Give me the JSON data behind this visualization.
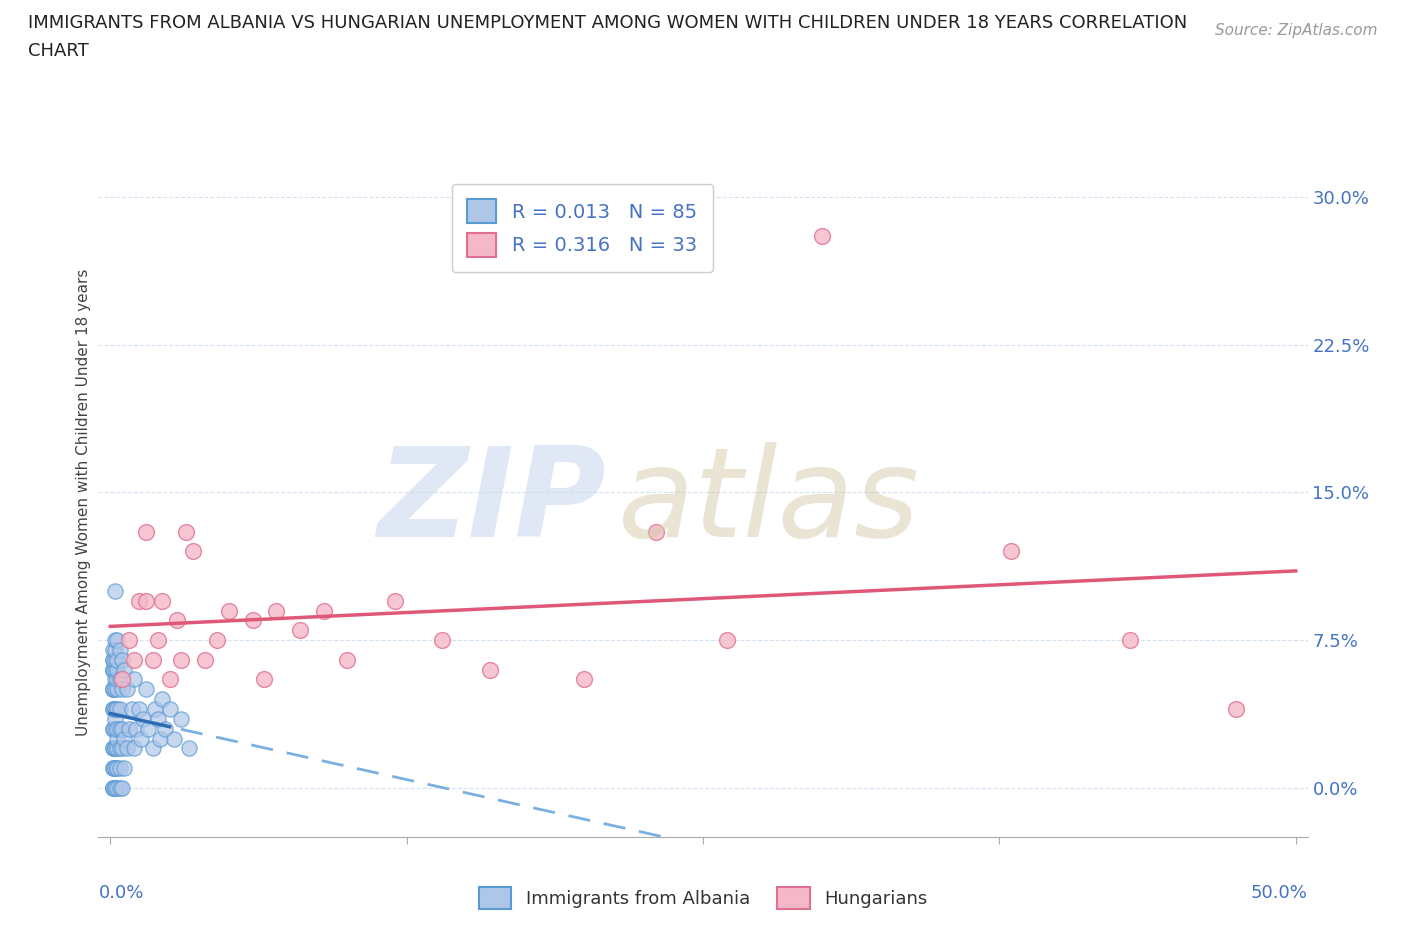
{
  "title_line1": "IMMIGRANTS FROM ALBANIA VS HUNGARIAN UNEMPLOYMENT AMONG WOMEN WITH CHILDREN UNDER 18 YEARS CORRELATION",
  "title_line2": "CHART",
  "source": "Source: ZipAtlas.com",
  "ylabel": "Unemployment Among Women with Children Under 18 years",
  "ytick_labels": [
    "0.0%",
    "7.5%",
    "15.0%",
    "22.5%",
    "30.0%"
  ],
  "ytick_values": [
    0.0,
    0.075,
    0.15,
    0.225,
    0.3
  ],
  "xlim": [
    -0.005,
    0.505
  ],
  "ylim": [
    -0.025,
    0.315
  ],
  "legend_albania": "R = 0.013   N = 85",
  "legend_hungarians": "R = 0.316   N = 33",
  "color_albania_fill": "#aec6e8",
  "color_albania_edge": "#5b9bd5",
  "color_albania_line_solid": "#2d6bb5",
  "color_albania_line_dash": "#7bb0e0",
  "color_hungarians_fill": "#f4b8c8",
  "color_hungarians_edge": "#e07090",
  "color_hungarians_line": "#e05878",
  "color_axis_text": "#4472c4",
  "color_grid": "#d0dff0",
  "watermark_zip_color": "#ccd9f0",
  "watermark_atlas_color": "#d4cba8",
  "albania_x": [
    0.001,
    0.001,
    0.001,
    0.001,
    0.001,
    0.001,
    0.001,
    0.001,
    0.001,
    0.001,
    0.001,
    0.001,
    0.001,
    0.001,
    0.001,
    0.001,
    0.001,
    0.001,
    0.001,
    0.001,
    0.002,
    0.002,
    0.002,
    0.002,
    0.002,
    0.002,
    0.002,
    0.002,
    0.002,
    0.002,
    0.002,
    0.002,
    0.002,
    0.002,
    0.002,
    0.002,
    0.002,
    0.003,
    0.003,
    0.003,
    0.003,
    0.003,
    0.003,
    0.003,
    0.003,
    0.003,
    0.003,
    0.003,
    0.004,
    0.004,
    0.004,
    0.004,
    0.004,
    0.004,
    0.004,
    0.005,
    0.005,
    0.005,
    0.005,
    0.005,
    0.006,
    0.006,
    0.006,
    0.007,
    0.007,
    0.008,
    0.009,
    0.01,
    0.01,
    0.011,
    0.012,
    0.013,
    0.014,
    0.015,
    0.016,
    0.018,
    0.019,
    0.02,
    0.021,
    0.022,
    0.023,
    0.025,
    0.027,
    0.03,
    0.033
  ],
  "albania_y": [
    0.0,
    0.0,
    0.0,
    0.01,
    0.01,
    0.02,
    0.02,
    0.03,
    0.03,
    0.04,
    0.04,
    0.05,
    0.05,
    0.05,
    0.06,
    0.06,
    0.06,
    0.065,
    0.065,
    0.07,
    0.0,
    0.0,
    0.01,
    0.01,
    0.02,
    0.02,
    0.03,
    0.035,
    0.04,
    0.04,
    0.05,
    0.055,
    0.06,
    0.065,
    0.07,
    0.075,
    0.1,
    0.0,
    0.01,
    0.02,
    0.025,
    0.03,
    0.04,
    0.05,
    0.055,
    0.06,
    0.065,
    0.075,
    0.0,
    0.01,
    0.02,
    0.03,
    0.04,
    0.055,
    0.07,
    0.0,
    0.02,
    0.03,
    0.05,
    0.065,
    0.01,
    0.025,
    0.06,
    0.02,
    0.05,
    0.03,
    0.04,
    0.02,
    0.055,
    0.03,
    0.04,
    0.025,
    0.035,
    0.05,
    0.03,
    0.02,
    0.04,
    0.035,
    0.025,
    0.045,
    0.03,
    0.04,
    0.025,
    0.035,
    0.02
  ],
  "hungarian_x": [
    0.005,
    0.008,
    0.01,
    0.012,
    0.015,
    0.015,
    0.018,
    0.02,
    0.022,
    0.025,
    0.028,
    0.03,
    0.032,
    0.035,
    0.04,
    0.045,
    0.05,
    0.06,
    0.065,
    0.07,
    0.08,
    0.09,
    0.1,
    0.12,
    0.14,
    0.16,
    0.2,
    0.23,
    0.26,
    0.3,
    0.38,
    0.43,
    0.475
  ],
  "hungarian_y": [
    0.055,
    0.075,
    0.065,
    0.095,
    0.13,
    0.095,
    0.065,
    0.075,
    0.095,
    0.055,
    0.085,
    0.065,
    0.13,
    0.12,
    0.065,
    0.075,
    0.09,
    0.085,
    0.055,
    0.09,
    0.08,
    0.09,
    0.065,
    0.095,
    0.075,
    0.06,
    0.055,
    0.13,
    0.075,
    0.28,
    0.12,
    0.075,
    0.04
  ]
}
